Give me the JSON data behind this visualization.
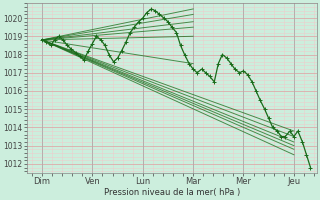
{
  "ylabel": "Pression niveau de la mer( hPa )",
  "ylim": [
    1011.5,
    1020.8
  ],
  "yticks": [
    1012,
    1013,
    1014,
    1015,
    1016,
    1017,
    1018,
    1019,
    1020
  ],
  "day_labels": [
    "Dim",
    "Ven",
    "Lun",
    "Mar",
    "Mer",
    "Jeu"
  ],
  "day_positions": [
    0,
    1,
    2,
    3,
    4,
    5
  ],
  "bg_color": "#cceedd",
  "grid_color_major": "#ddaaaa",
  "grid_color_minor": "#eecccc",
  "line_color": "#1a6b1a",
  "ensemble_lines": [
    {
      "x": [
        0.0,
        5.0
      ],
      "y": [
        1018.8,
        1013.8
      ]
    },
    {
      "x": [
        0.0,
        5.0
      ],
      "y": [
        1018.8,
        1013.5
      ]
    },
    {
      "x": [
        0.0,
        5.0
      ],
      "y": [
        1018.8,
        1013.2
      ]
    },
    {
      "x": [
        0.0,
        5.0
      ],
      "y": [
        1018.8,
        1013.0
      ]
    },
    {
      "x": [
        0.0,
        5.0
      ],
      "y": [
        1018.8,
        1012.8
      ]
    },
    {
      "x": [
        0.0,
        5.0
      ],
      "y": [
        1018.8,
        1012.5
      ]
    },
    {
      "x": [
        0.0,
        3.0
      ],
      "y": [
        1018.8,
        1020.5
      ]
    },
    {
      "x": [
        0.0,
        3.0
      ],
      "y": [
        1018.8,
        1020.2
      ]
    },
    {
      "x": [
        0.0,
        3.0
      ],
      "y": [
        1018.8,
        1019.8
      ]
    },
    {
      "x": [
        0.0,
        3.0
      ],
      "y": [
        1018.8,
        1019.5
      ]
    },
    {
      "x": [
        0.0,
        3.0
      ],
      "y": [
        1018.8,
        1019.0
      ]
    },
    {
      "x": [
        0.0,
        3.0
      ],
      "y": [
        1018.8,
        1017.5
      ]
    }
  ],
  "main_line_x": [
    0.0,
    0.08,
    0.17,
    0.25,
    0.33,
    0.42,
    0.5,
    0.58,
    0.67,
    0.75,
    0.83,
    0.92,
    1.0,
    1.08,
    1.17,
    1.25,
    1.33,
    1.42,
    1.5,
    1.58,
    1.67,
    1.75,
    1.83,
    1.92,
    2.0,
    2.08,
    2.17,
    2.25,
    2.33,
    2.42,
    2.5,
    2.58,
    2.67,
    2.75,
    2.83,
    2.92,
    3.0,
    3.08,
    3.17,
    3.25,
    3.33,
    3.42,
    3.5,
    3.58,
    3.67,
    3.75,
    3.83,
    3.92,
    4.0,
    4.08,
    4.17,
    4.25,
    4.33,
    4.42,
    4.5,
    4.58,
    4.67,
    4.75,
    4.83,
    4.92,
    5.0,
    5.08,
    5.17,
    5.25,
    5.33
  ],
  "main_line_y": [
    1018.8,
    1018.7,
    1018.5,
    1018.8,
    1019.0,
    1018.8,
    1018.5,
    1018.3,
    1018.1,
    1017.9,
    1017.7,
    1018.2,
    1018.6,
    1019.0,
    1018.8,
    1018.5,
    1018.0,
    1017.6,
    1017.8,
    1018.2,
    1018.7,
    1019.2,
    1019.5,
    1019.8,
    1020.0,
    1020.3,
    1020.5,
    1020.4,
    1020.2,
    1020.0,
    1019.8,
    1019.5,
    1019.2,
    1018.5,
    1018.0,
    1017.5,
    1017.2,
    1017.0,
    1017.2,
    1017.0,
    1016.8,
    1016.5,
    1017.5,
    1018.0,
    1017.8,
    1017.5,
    1017.2,
    1017.0,
    1017.1,
    1016.9,
    1016.5,
    1016.0,
    1015.5,
    1015.0,
    1014.5,
    1014.0,
    1013.8,
    1013.5,
    1013.5,
    1013.8,
    1013.5,
    1013.8,
    1013.2,
    1012.5,
    1011.8
  ]
}
